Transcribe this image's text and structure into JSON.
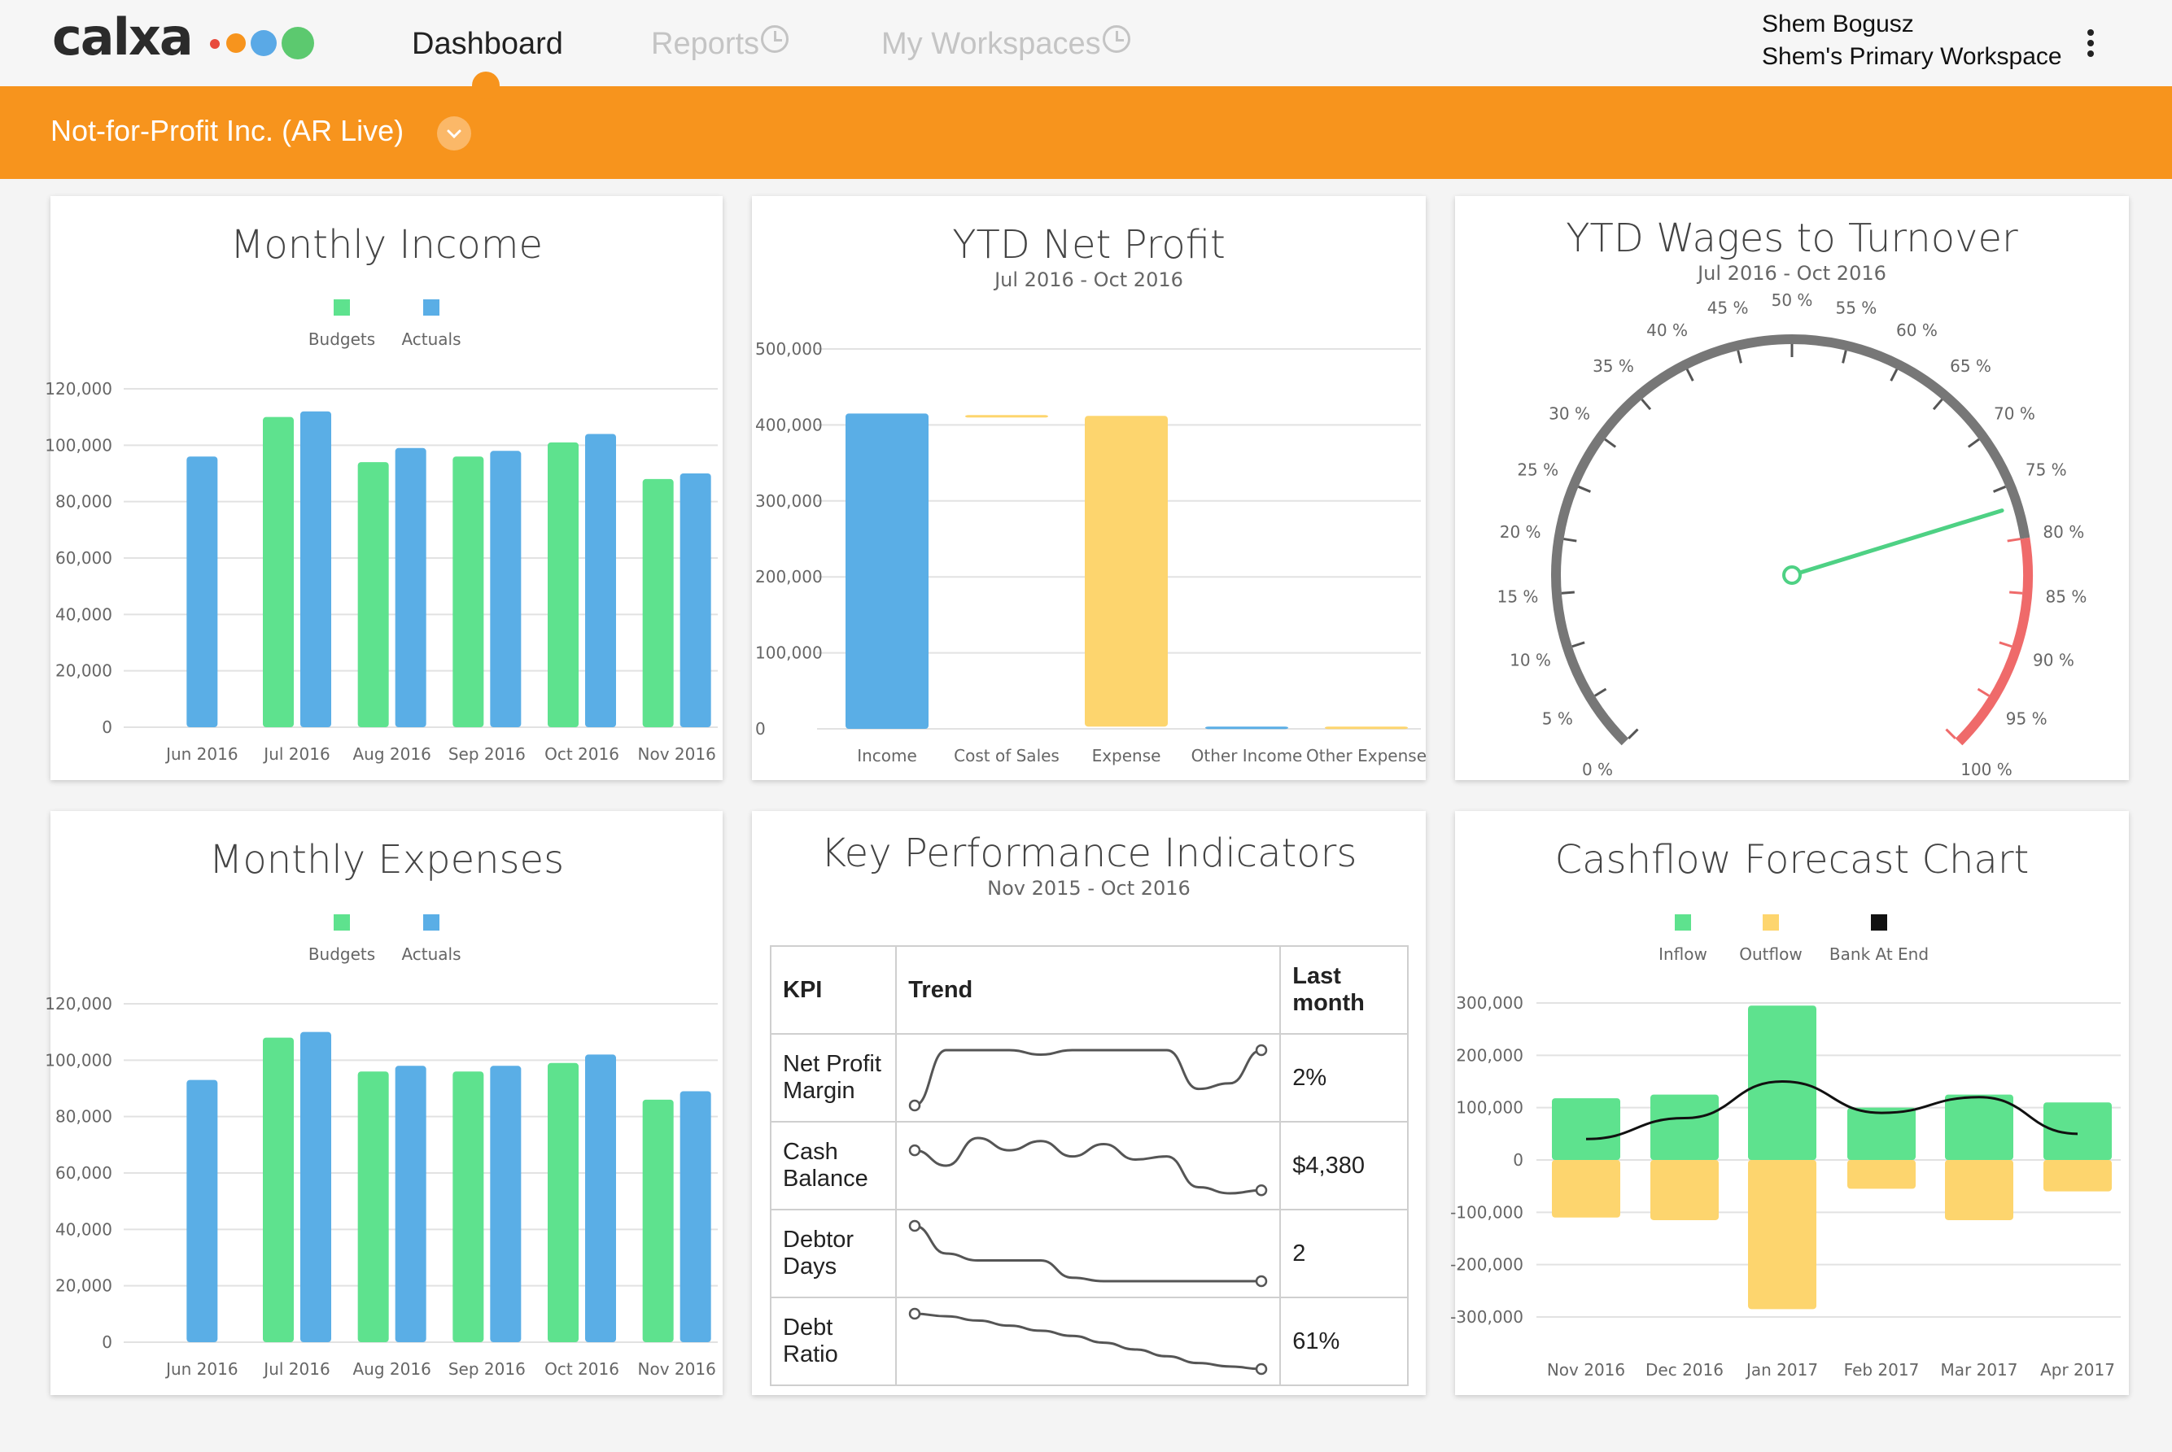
{
  "header": {
    "logo_text": "calxa",
    "logo_dot_colors": [
      "#e84a3c",
      "#f7941d",
      "#5aa9e6",
      "#5cc96f"
    ],
    "tabs": [
      {
        "label": "Dashboard",
        "active": true,
        "icon": ""
      },
      {
        "label": "Reports",
        "active": false,
        "icon": "clock-icon"
      },
      {
        "label": "My Workspaces",
        "active": false,
        "icon": "clock-icon"
      }
    ],
    "user_name": "Shem Bogusz",
    "workspace_name": "Shem's Primary Workspace",
    "menu_icon": "kebab-menu-icon"
  },
  "org_bar": {
    "org_name": "Not-for-Profit Inc. (AR Live)",
    "dropdown_icon": "chevron-down-icon",
    "color": "#f7941d"
  },
  "colors": {
    "green": "#5ee28e",
    "blue": "#5aaee6",
    "yellow": "#fdd56e",
    "red": "#ef6a6a",
    "gray": "#777777"
  },
  "monthly_income": {
    "title": "Monthly Income",
    "legend": [
      "Budgets",
      "Actuals"
    ],
    "chart_data": {
      "type": "bar",
      "categories": [
        "Jun 2016",
        "Jul 2016",
        "Aug 2016",
        "Sep 2016",
        "Oct 2016",
        "Nov 2016"
      ],
      "series": [
        {
          "name": "Budgets",
          "values": [
            null,
            110000,
            94000,
            96000,
            101000,
            88000
          ]
        },
        {
          "name": "Actuals",
          "values": [
            96000,
            112000,
            99000,
            98000,
            104000,
            90000
          ]
        }
      ],
      "yticks": [
        "0",
        "20,000",
        "40,000",
        "60,000",
        "80,000",
        "100,000",
        "120,000"
      ],
      "ylim": [
        0,
        120000
      ],
      "legend_position": "top"
    }
  },
  "ytd_net_profit": {
    "title": "YTD Net Profit",
    "subtitle": "Jul 2016 - Oct 2016",
    "chart_data": {
      "type": "bar",
      "categories": [
        "Income",
        "Cost of Sales",
        "Expense",
        "Other Income",
        "Other Expense"
      ],
      "values": [
        415000,
        413000,
        412000,
        3000,
        3000
      ],
      "floating_base": [
        0,
        413000,
        3000,
        0,
        0
      ],
      "colors": [
        "#5aaee6",
        "#fdd56e",
        "#fdd56e",
        "#5aaee6",
        "#fdd56e"
      ],
      "yticks": [
        "0",
        "100,000",
        "200,000",
        "300,000",
        "400,000",
        "500,000"
      ],
      "ylim": [
        0,
        500000
      ]
    }
  },
  "ytd_wages": {
    "title": "YTD Wages to Turnover",
    "subtitle": "Jul 2016 - Oct 2016",
    "chart_data": {
      "type": "gauge",
      "min": 0,
      "max": 100,
      "value": 77,
      "tick_labels": [
        "0 %",
        "5 %",
        "10 %",
        "15 %",
        "20 %",
        "25 %",
        "30 %",
        "35 %",
        "40 %",
        "45 %",
        "50 %",
        "55 %",
        "60 %",
        "65 %",
        "70 %",
        "75 %",
        "80 %",
        "85 %",
        "90 %",
        "95 %",
        "100 %"
      ],
      "red_band": [
        80,
        100
      ]
    }
  },
  "monthly_expenses": {
    "title": "Monthly Expenses",
    "legend": [
      "Budgets",
      "Actuals"
    ],
    "chart_data": {
      "type": "bar",
      "categories": [
        "Jun 2016",
        "Jul 2016",
        "Aug 2016",
        "Sep 2016",
        "Oct 2016",
        "Nov 2016"
      ],
      "series": [
        {
          "name": "Budgets",
          "values": [
            null,
            108000,
            96000,
            96000,
            99000,
            86000
          ]
        },
        {
          "name": "Actuals",
          "values": [
            93000,
            110000,
            98000,
            98000,
            102000,
            89000
          ]
        }
      ],
      "yticks": [
        "0",
        "20,000",
        "40,000",
        "60,000",
        "80,000",
        "100,000",
        "120,000"
      ],
      "ylim": [
        0,
        120000
      ],
      "legend_position": "top"
    }
  },
  "kpi": {
    "title": "Key Performance Indicators",
    "subtitle": "Nov 2015 - Oct 2016",
    "headers": [
      "KPI",
      "Trend",
      "Last month"
    ],
    "rows": [
      {
        "name": "Net Profit Margin",
        "last": "2%",
        "trend": [
          0,
          1.0,
          1.0,
          1.0,
          0.92,
          1.0,
          1.0,
          1.0,
          1.0,
          0.3,
          0.4,
          1.0
        ]
      },
      {
        "name": "Cash Balance",
        "last": "$4,380",
        "trend": [
          1.0,
          0.75,
          1.2,
          1.0,
          1.15,
          0.9,
          1.1,
          0.85,
          0.9,
          0.4,
          0.3,
          0.35
        ]
      },
      {
        "name": "Debtor Days",
        "last": "2",
        "trend": [
          1.0,
          0.6,
          0.5,
          0.5,
          0.5,
          0.25,
          0.2,
          0.2,
          0.2,
          0.2,
          0.2,
          0.2
        ]
      },
      {
        "name": "Debt Ratio",
        "last": "61%",
        "trend": [
          1.0,
          0.97,
          0.92,
          0.86,
          0.8,
          0.74,
          0.66,
          0.58,
          0.5,
          0.42,
          0.38,
          0.35
        ]
      }
    ]
  },
  "cashflow": {
    "title": "Cashflow Forecast Chart",
    "legend": [
      "Inflow",
      "Outflow",
      "Bank At End"
    ],
    "chart_data": {
      "type": "bar",
      "categories": [
        "Nov 2016",
        "Dec 2016",
        "Jan 2017",
        "Feb 2017",
        "Mar 2017",
        "Apr 2017"
      ],
      "series": [
        {
          "name": "Inflow",
          "values": [
            118000,
            125000,
            295000,
            100000,
            125000,
            110000
          ]
        },
        {
          "name": "Outflow",
          "values": [
            -110000,
            -115000,
            -285000,
            -55000,
            -115000,
            -60000
          ]
        },
        {
          "name": "Bank At End",
          "values": [
            40000,
            80000,
            150000,
            90000,
            120000,
            50000
          ]
        }
      ],
      "yticks": [
        "-300,000",
        "-200,000",
        "-100,000",
        "0",
        "100,000",
        "200,000",
        "300,000"
      ],
      "ylim": [
        -300000,
        300000
      ],
      "legend_position": "top"
    }
  }
}
